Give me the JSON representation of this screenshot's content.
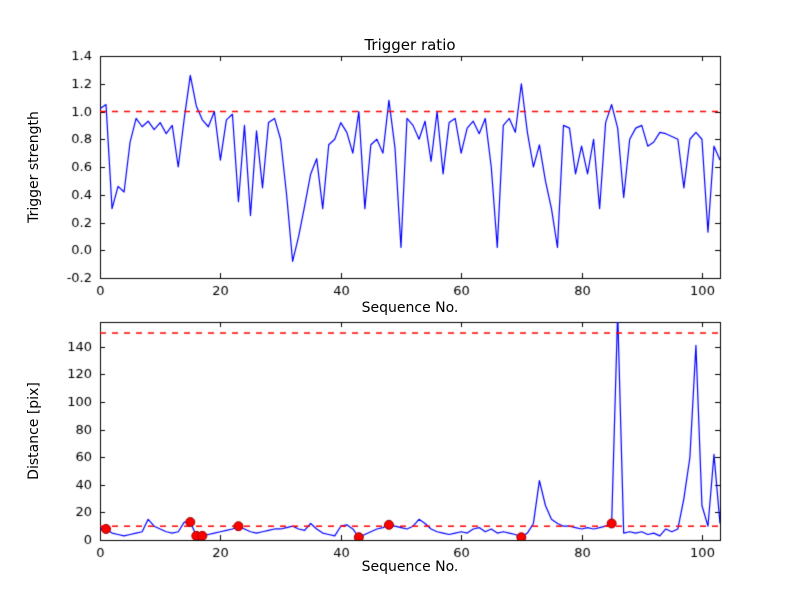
{
  "figure": {
    "background": "#ffffff",
    "axis_color": "#000000",
    "tick_label_color": "#000000"
  },
  "chart_data": [
    {
      "type": "line",
      "title": "Trigger ratio",
      "xlabel": "Sequence No.",
      "ylabel": "Trigger strength",
      "xlim": [
        0,
        103
      ],
      "ylim": [
        -0.2,
        1.4
      ],
      "xticks": [
        0,
        20,
        40,
        60,
        80,
        100
      ],
      "xticklabels": [
        "0",
        "20",
        "40",
        "60",
        "80",
        "100"
      ],
      "yticks": [
        -0.2,
        0.0,
        0.2,
        0.4,
        0.6,
        0.8,
        1.0,
        1.2,
        1.4
      ],
      "yticklabels": [
        "-0.2",
        "0.0",
        "0.2",
        "0.4",
        "0.6",
        "0.8",
        "1.0",
        "1.2",
        "1.4"
      ],
      "grid": false,
      "legend": null,
      "line_color": "#0000ff",
      "threshold_color": "#ff0000",
      "thresholds": [
        1.0
      ],
      "y": [
        1.02,
        1.05,
        0.3,
        0.46,
        0.42,
        0.78,
        0.95,
        0.89,
        0.93,
        0.87,
        0.92,
        0.84,
        0.9,
        0.6,
        0.95,
        1.26,
        1.04,
        0.94,
        0.89,
        1.0,
        0.65,
        0.94,
        0.98,
        0.35,
        0.9,
        0.25,
        0.86,
        0.45,
        0.92,
        0.95,
        0.8,
        0.4,
        -0.08,
        0.1,
        0.32,
        0.55,
        0.66,
        0.3,
        0.76,
        0.8,
        0.92,
        0.85,
        0.7,
        1.0,
        0.3,
        0.76,
        0.8,
        0.7,
        1.08,
        0.74,
        0.02,
        0.95,
        0.9,
        0.8,
        0.93,
        0.64,
        1.0,
        0.55,
        0.92,
        0.95,
        0.7,
        0.88,
        0.93,
        0.84,
        0.95,
        0.6,
        0.02,
        0.9,
        0.95,
        0.85,
        1.2,
        0.85,
        0.6,
        0.76,
        0.5,
        0.3,
        0.02,
        0.9,
        0.88,
        0.55,
        0.75,
        0.55,
        0.8,
        0.3,
        0.92,
        1.05,
        0.88,
        0.38,
        0.8,
        0.88,
        0.9,
        0.75,
        0.78,
        0.85,
        0.84,
        0.82,
        0.8,
        0.45,
        0.8,
        0.85,
        0.8,
        0.13,
        0.75,
        0.65
      ]
    },
    {
      "type": "line",
      "title": "",
      "xlabel": "Sequence No.",
      "ylabel": "Distance [pix]",
      "xlim": [
        0,
        103
      ],
      "ylim": [
        0,
        158
      ],
      "xticks": [
        0,
        20,
        40,
        60,
        80,
        100
      ],
      "xticklabels": [
        "0",
        "20",
        "40",
        "60",
        "80",
        "100"
      ],
      "yticks": [
        0,
        20,
        40,
        60,
        80,
        100,
        120,
        140
      ],
      "yticklabels": [
        "0",
        "20",
        "40",
        "60",
        "80",
        "100",
        "120",
        "140"
      ],
      "grid": false,
      "legend": null,
      "line_color": "#0000ff",
      "threshold_color": "#ff0000",
      "marker_color": "#ff0000",
      "marker_edge_color": "#990000",
      "thresholds": [
        150,
        10
      ],
      "y": [
        8,
        8,
        5,
        4,
        3,
        4,
        5,
        6,
        15,
        10,
        8,
        6,
        5,
        6,
        13,
        13,
        3,
        3,
        4,
        5,
        6,
        7,
        8,
        10,
        8,
        6,
        5,
        6,
        7,
        8,
        8,
        9,
        10,
        8,
        7,
        12,
        8,
        5,
        4,
        3,
        10,
        11,
        8,
        2,
        4,
        6,
        8,
        9,
        11,
        10,
        9,
        8,
        10,
        15,
        12,
        8,
        6,
        5,
        4,
        5,
        6,
        5,
        8,
        9,
        6,
        8,
        5,
        6,
        5,
        4,
        2,
        5,
        12,
        43,
        25,
        15,
        12,
        10,
        10,
        9,
        8,
        9,
        8,
        9,
        10,
        12,
        165,
        5,
        6,
        5,
        6,
        4,
        5,
        3,
        8,
        6,
        8,
        30,
        60,
        141,
        25,
        10,
        62,
        12
      ],
      "markers": [
        {
          "x": 1,
          "y": 8
        },
        {
          "x": 15,
          "y": 13
        },
        {
          "x": 16,
          "y": 3
        },
        {
          "x": 17,
          "y": 3
        },
        {
          "x": 23,
          "y": 10
        },
        {
          "x": 43,
          "y": 2
        },
        {
          "x": 48,
          "y": 11
        },
        {
          "x": 70,
          "y": 2
        },
        {
          "x": 85,
          "y": 12
        }
      ]
    }
  ]
}
